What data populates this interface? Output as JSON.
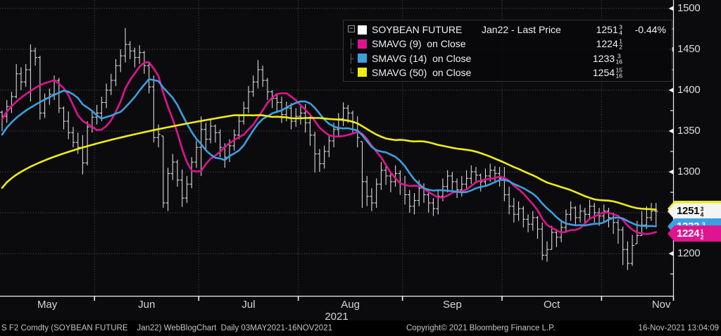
{
  "legend": {
    "expander_glyph": "−",
    "tree_mid": "├",
    "tree_end": "└",
    "rows": [
      {
        "color": "#ffffff",
        "label": "SOYBEAN FUTURE",
        "detail": "Jan22 - Last Price",
        "value": {
          "whole": "1251",
          "num": "3",
          "den": "4"
        },
        "change": "-0.44%"
      },
      {
        "color": "#e0148e",
        "label": "SMAVG (9)  on Close",
        "detail": "",
        "value": {
          "whole": "1224",
          "num": "1",
          "den": "2"
        },
        "change": ""
      },
      {
        "color": "#3d9fe0",
        "label": "SMAVG (14)  on Close",
        "detail": "",
        "value": {
          "whole": "1233",
          "num": "3",
          "den": "16"
        },
        "change": ""
      },
      {
        "color": "#eded12",
        "label": "SMAVG (50)  on Close",
        "detail": "",
        "value": {
          "whole": "1254",
          "num": "15",
          "den": "16"
        },
        "change": ""
      }
    ]
  },
  "axis": {
    "year": "2021"
  },
  "tags": [
    {
      "name": "sma50-price-tag",
      "price": 1254.9375,
      "color": "#eded12",
      "text_color": "#0a0a0a",
      "value": {
        "whole": "1254",
        "num": "15",
        "den": "16"
      }
    },
    {
      "name": "last-price-tag",
      "price": 1251.75,
      "color": "#f4f4f4",
      "text_color": "#0a0a0a",
      "value": {
        "whole": "1251",
        "num": "3",
        "den": "4"
      }
    },
    {
      "name": "sma14-price-tag",
      "price": 1233.1875,
      "color": "#3d9fe0",
      "text_color": "#ffffff",
      "value": {
        "whole": "1233",
        "num": "3",
        "den": "16"
      }
    },
    {
      "name": "sma9-price-tag",
      "price": 1224.5,
      "color": "#e0148e",
      "text_color": "#ffffff",
      "value": {
        "whole": "1224",
        "num": "1",
        "den": "2"
      }
    }
  ],
  "statusbar": {
    "left": "S F2 Comdty (SOYBEAN FUTURE    Jan22) WebBlogChart  Daily 03MAY2021-16NOV2021",
    "center": "Copyright© 2021 Bloomberg Finance L.P.",
    "right": "16-Nov-2021 13:04:09"
  },
  "chart_data": {
    "type": "ohlc",
    "title": "SOYBEAN FUTURE Jan22 - Daily with SMAVG(9), SMAVG(14), SMAVG(50)",
    "period": "Daily 03MAY2021-16NOV2021",
    "last_price": 1251.75,
    "last_price_change_pct": -0.44,
    "y_axis": {
      "majors": [
        1500,
        1450,
        1400,
        1350,
        1300,
        1250,
        1200
      ],
      "minors": [
        1475,
        1425,
        1375,
        1325,
        1275,
        1225,
        1175
      ]
    },
    "months": [
      {
        "label": "May",
        "bars": 20
      },
      {
        "label": "Jun",
        "bars": 22
      },
      {
        "label": "Jul",
        "bars": 21
      },
      {
        "label": "Aug",
        "bars": 22
      },
      {
        "label": "Sep",
        "bars": 21
      },
      {
        "label": "Oct",
        "bars": 21
      },
      {
        "label": "Nov",
        "bars": 12
      }
    ],
    "bars": [
      [
        1375,
        1350,
        1368
      ],
      [
        1388,
        1360,
        1380
      ],
      [
        1398,
        1372,
        1392
      ],
      [
        1432,
        1390,
        1420
      ],
      [
        1428,
        1400,
        1410
      ],
      [
        1432,
        1404,
        1425
      ],
      [
        1456,
        1386,
        1448
      ],
      [
        1452,
        1430,
        1440
      ],
      [
        1442,
        1364,
        1372
      ],
      [
        1396,
        1366,
        1390
      ],
      [
        1402,
        1382,
        1395
      ],
      [
        1418,
        1388,
        1412
      ],
      [
        1415,
        1372,
        1378
      ],
      [
        1380,
        1352,
        1362
      ],
      [
        1374,
        1340,
        1348
      ],
      [
        1355,
        1330,
        1336
      ],
      [
        1348,
        1322,
        1330
      ],
      [
        1345,
        1297,
        1311
      ],
      [
        1362,
        1308,
        1355
      ],
      [
        1375,
        1348,
        1367
      ],
      [
        1382,
        1358,
        1372
      ],
      [
        1392,
        1362,
        1385
      ],
      [
        1408,
        1378,
        1400
      ],
      [
        1420,
        1394,
        1412
      ],
      [
        1438,
        1405,
        1430
      ],
      [
        1450,
        1422,
        1442
      ],
      [
        1476,
        1434,
        1456
      ],
      [
        1460,
        1438,
        1448
      ],
      [
        1452,
        1428,
        1440
      ],
      [
        1455,
        1432,
        1446
      ],
      [
        1448,
        1420,
        1430
      ],
      [
        1435,
        1396,
        1404
      ],
      [
        1418,
        1336,
        1342
      ],
      [
        1358,
        1330,
        1346
      ],
      [
        1344,
        1256,
        1262
      ],
      [
        1305,
        1252,
        1298
      ],
      [
        1322,
        1290,
        1312
      ],
      [
        1315,
        1282,
        1290
      ],
      [
        1303,
        1257,
        1268
      ],
      [
        1295,
        1262,
        1285
      ],
      [
        1318,
        1280,
        1312
      ],
      [
        1338,
        1305,
        1330
      ],
      [
        1368,
        1295,
        1352
      ],
      [
        1360,
        1328,
        1340
      ],
      [
        1364,
        1335,
        1356
      ],
      [
        1358,
        1336,
        1348
      ],
      [
        1352,
        1318,
        1330
      ],
      [
        1335,
        1305,
        1318
      ],
      [
        1340,
        1312,
        1332
      ],
      [
        1352,
        1326,
        1345
      ],
      [
        1370,
        1340,
        1362
      ],
      [
        1386,
        1358,
        1378
      ],
      [
        1405,
        1372,
        1398
      ],
      [
        1418,
        1392,
        1410
      ],
      [
        1437,
        1402,
        1425
      ],
      [
        1430,
        1404,
        1412
      ],
      [
        1415,
        1388,
        1398
      ],
      [
        1400,
        1378,
        1390
      ],
      [
        1396,
        1372,
        1385
      ],
      [
        1392,
        1360,
        1370
      ],
      [
        1386,
        1362,
        1378
      ],
      [
        1384,
        1352,
        1362
      ],
      [
        1378,
        1355,
        1368
      ],
      [
        1380,
        1358,
        1372
      ],
      [
        1383,
        1348,
        1360
      ],
      [
        1368,
        1332,
        1345
      ],
      [
        1349,
        1299,
        1322
      ],
      [
        1328,
        1300,
        1310
      ],
      [
        1332,
        1304,
        1325
      ],
      [
        1345,
        1318,
        1338
      ],
      [
        1360,
        1330,
        1352
      ],
      [
        1372,
        1344,
        1365
      ],
      [
        1385,
        1356,
        1378
      ],
      [
        1382,
        1360,
        1372
      ],
      [
        1375,
        1348,
        1360
      ],
      [
        1368,
        1330,
        1342
      ],
      [
        1337,
        1256,
        1288
      ],
      [
        1295,
        1258,
        1270
      ],
      [
        1280,
        1252,
        1262
      ],
      [
        1292,
        1256,
        1285
      ],
      [
        1312,
        1278,
        1302
      ],
      [
        1310,
        1284,
        1295
      ],
      [
        1300,
        1275,
        1288
      ],
      [
        1308,
        1282,
        1298
      ],
      [
        1302,
        1272,
        1285
      ],
      [
        1295,
        1260,
        1272
      ],
      [
        1278,
        1250,
        1258
      ],
      [
        1274,
        1248,
        1265
      ],
      [
        1290,
        1258,
        1280
      ],
      [
        1286,
        1262,
        1272
      ],
      [
        1276,
        1250,
        1262
      ],
      [
        1268,
        1246,
        1255
      ],
      [
        1278,
        1248,
        1270
      ],
      [
        1292,
        1264,
        1282
      ],
      [
        1302,
        1275,
        1295
      ],
      [
        1300,
        1278,
        1288
      ],
      [
        1292,
        1268,
        1278
      ],
      [
        1295,
        1270,
        1285
      ],
      [
        1302,
        1278,
        1292
      ],
      [
        1308,
        1285,
        1300
      ],
      [
        1306,
        1286,
        1296
      ],
      [
        1298,
        1276,
        1288
      ],
      [
        1304,
        1282,
        1295
      ],
      [
        1310,
        1288,
        1302
      ],
      [
        1307,
        1286,
        1298
      ],
      [
        1306,
        1282,
        1292
      ],
      [
        1306,
        1264,
        1272
      ],
      [
        1282,
        1248,
        1258
      ],
      [
        1268,
        1238,
        1248
      ],
      [
        1264,
        1240,
        1255
      ],
      [
        1258,
        1232,
        1242
      ],
      [
        1248,
        1226,
        1236
      ],
      [
        1252,
        1228,
        1244
      ],
      [
        1246,
        1218,
        1230
      ],
      [
        1238,
        1192,
        1198
      ],
      [
        1215,
        1190,
        1205
      ],
      [
        1234,
        1205,
        1226
      ],
      [
        1230,
        1208,
        1220
      ],
      [
        1240,
        1214,
        1232
      ],
      [
        1254,
        1226,
        1248
      ],
      [
        1264,
        1240,
        1256
      ],
      [
        1258,
        1234,
        1244
      ],
      [
        1260,
        1238,
        1252
      ],
      [
        1256,
        1234,
        1248
      ],
      [
        1266,
        1242,
        1258
      ],
      [
        1262,
        1238,
        1250
      ],
      [
        1256,
        1234,
        1246
      ],
      [
        1260,
        1238,
        1252
      ],
      [
        1256,
        1232,
        1244
      ],
      [
        1250,
        1224,
        1238
      ],
      [
        1242,
        1212,
        1229
      ],
      [
        1233,
        1186,
        1205
      ],
      [
        1215,
        1180,
        1188
      ],
      [
        1223,
        1185,
        1210
      ],
      [
        1240,
        1212,
        1222
      ],
      [
        1252,
        1222,
        1235
      ],
      [
        1258,
        1230,
        1244
      ],
      [
        1262,
        1240,
        1252
      ],
      [
        1262,
        1234,
        1251.75
      ]
    ],
    "moving_averages": [
      {
        "label": "SMAVG (9) on Close",
        "window": 9,
        "color": "#e0148e",
        "start_value": 1340,
        "end_value": 1224.5
      },
      {
        "label": "SMAVG (14) on Close",
        "window": 14,
        "color": "#3d9fe0",
        "start_value": 1322,
        "end_value": 1233.1875
      },
      {
        "label": "SMAVG (50) on Close",
        "window": 50,
        "color": "#eded12",
        "start_value": 1262,
        "end_value": 1254.9375
      }
    ],
    "colors": {
      "bars": "#d9d9d9",
      "grid": "#5a5a5a",
      "axis": "#eeeeee",
      "background": "#0b0b0e",
      "footer_background": "#000000"
    }
  }
}
